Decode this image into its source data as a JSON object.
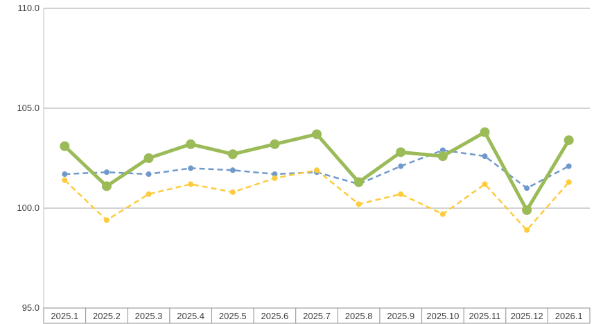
{
  "chart_data": {
    "type": "line",
    "title": "",
    "xlabel": "",
    "ylabel": "",
    "categories": [
      "2025.1",
      "2025.2",
      "2025.3",
      "2025.4",
      "2025.5",
      "2025.6",
      "2025.7",
      "2025.8",
      "2025.9",
      "2025.10",
      "2025.11",
      "2025.12",
      "2026.1"
    ],
    "ylim": [
      95,
      110
    ],
    "yticks": [
      "95.0",
      "100.0",
      "105.0",
      "110.0"
    ],
    "grid": true,
    "legend": "none",
    "series": [
      {
        "values": [
          103.1,
          101.1,
          102.5,
          103.2,
          102.7,
          103.2,
          103.7,
          101.3,
          102.8,
          102.6,
          103.8,
          99.9,
          103.4
        ],
        "color": "#9bbb59",
        "style": "solid"
      },
      {
        "values": [
          101.7,
          101.8,
          101.7,
          102.0,
          101.9,
          101.7,
          101.8,
          101.2,
          102.1,
          102.9,
          102.6,
          101.0,
          102.1
        ],
        "color": "#6f99cc",
        "style": "dashed"
      },
      {
        "values": [
          101.4,
          99.4,
          100.7,
          101.2,
          100.8,
          101.5,
          101.9,
          100.2,
          100.7,
          99.7,
          101.2,
          98.9,
          101.3
        ],
        "color": "#fdcb3c",
        "style": "dashed"
      }
    ]
  }
}
